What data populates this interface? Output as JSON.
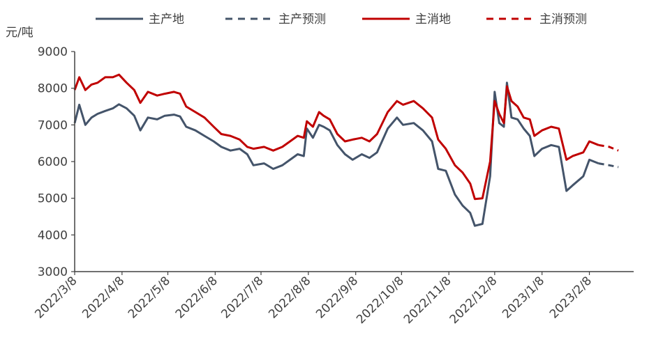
{
  "chart_data": {
    "type": "line",
    "y_unit": "元/吨",
    "ylim": [
      3000,
      9000
    ],
    "y_ticks": [
      "9000",
      "8000",
      "7000",
      "6000",
      "5000",
      "4000",
      "3000"
    ],
    "x_ticks": [
      "2022/3/8",
      "2022/4/8",
      "2022/5/8",
      "2022/6/8",
      "2022/7/8",
      "2022/8/8",
      "2022/9/8",
      "2022/10/8",
      "2022/11/8",
      "2022/12/8",
      "2023/1/8",
      "2023/2/8"
    ],
    "xlim": [
      "2022-03-08",
      "2023-03-09"
    ],
    "legend_position": "top",
    "grid": false,
    "series": [
      {
        "name": "主产地",
        "style": "solid",
        "color": "#44546a",
        "points": [
          [
            "2022-03-08",
            7050
          ],
          [
            "2022-03-11",
            7550
          ],
          [
            "2022-03-15",
            7000
          ],
          [
            "2022-03-19",
            7200
          ],
          [
            "2022-03-23",
            7300
          ],
          [
            "2022-03-28",
            7380
          ],
          [
            "2022-04-02",
            7450
          ],
          [
            "2022-04-06",
            7560
          ],
          [
            "2022-04-11",
            7450
          ],
          [
            "2022-04-16",
            7250
          ],
          [
            "2022-04-20",
            6850
          ],
          [
            "2022-04-25",
            7200
          ],
          [
            "2022-05-01",
            7150
          ],
          [
            "2022-05-06",
            7250
          ],
          [
            "2022-05-12",
            7280
          ],
          [
            "2022-05-16",
            7230
          ],
          [
            "2022-05-20",
            6950
          ],
          [
            "2022-05-26",
            6850
          ],
          [
            "2022-06-01",
            6700
          ],
          [
            "2022-06-07",
            6550
          ],
          [
            "2022-06-12",
            6400
          ],
          [
            "2022-06-18",
            6300
          ],
          [
            "2022-06-24",
            6350
          ],
          [
            "2022-06-29",
            6200
          ],
          [
            "2022-07-03",
            5900
          ],
          [
            "2022-07-10",
            5950
          ],
          [
            "2022-07-16",
            5800
          ],
          [
            "2022-07-22",
            5900
          ],
          [
            "2022-07-27",
            6050
          ],
          [
            "2022-08-01",
            6200
          ],
          [
            "2022-08-05",
            6150
          ],
          [
            "2022-08-07",
            6900
          ],
          [
            "2022-08-11",
            6650
          ],
          [
            "2022-08-15",
            7000
          ],
          [
            "2022-08-18",
            6950
          ],
          [
            "2022-08-22",
            6850
          ],
          [
            "2022-08-27",
            6450
          ],
          [
            "2022-09-01",
            6200
          ],
          [
            "2022-09-06",
            6050
          ],
          [
            "2022-09-12",
            6200
          ],
          [
            "2022-09-17",
            6100
          ],
          [
            "2022-09-22",
            6250
          ],
          [
            "2022-09-29",
            6900
          ],
          [
            "2022-10-05",
            7200
          ],
          [
            "2022-10-09",
            7000
          ],
          [
            "2022-10-16",
            7050
          ],
          [
            "2022-10-22",
            6850
          ],
          [
            "2022-10-28",
            6550
          ],
          [
            "2022-11-01",
            5800
          ],
          [
            "2022-11-06",
            5750
          ],
          [
            "2022-11-12",
            5100
          ],
          [
            "2022-11-17",
            4800
          ],
          [
            "2022-11-22",
            4600
          ],
          [
            "2022-11-25",
            4250
          ],
          [
            "2022-11-30",
            4300
          ],
          [
            "2022-12-05",
            5600
          ],
          [
            "2022-12-08",
            7900
          ],
          [
            "2022-12-11",
            7050
          ],
          [
            "2022-12-14",
            6950
          ],
          [
            "2022-12-16",
            8150
          ],
          [
            "2022-12-19",
            7200
          ],
          [
            "2022-12-23",
            7150
          ],
          [
            "2022-12-27",
            6900
          ],
          [
            "2022-12-31",
            6700
          ],
          [
            "2023-01-03",
            6150
          ],
          [
            "2023-01-08",
            6350
          ],
          [
            "2023-01-14",
            6450
          ],
          [
            "2023-01-19",
            6400
          ],
          [
            "2023-01-24",
            5200
          ],
          [
            "2023-01-28",
            5350
          ],
          [
            "2023-02-04",
            5600
          ],
          [
            "2023-02-08",
            6050
          ],
          [
            "2023-02-14",
            5950
          ]
        ]
      },
      {
        "name": "主产预测",
        "style": "dashed",
        "color": "#44546a",
        "points": [
          [
            "2023-02-14",
            5950
          ],
          [
            "2023-02-21",
            5900
          ],
          [
            "2023-02-27",
            5850
          ]
        ]
      },
      {
        "name": "主消地",
        "style": "solid",
        "color": "#c00000",
        "points": [
          [
            "2022-03-08",
            7950
          ],
          [
            "2022-03-11",
            8300
          ],
          [
            "2022-03-15",
            7950
          ],
          [
            "2022-03-19",
            8100
          ],
          [
            "2022-03-23",
            8150
          ],
          [
            "2022-03-28",
            8300
          ],
          [
            "2022-04-02",
            8300
          ],
          [
            "2022-04-06",
            8370
          ],
          [
            "2022-04-11",
            8150
          ],
          [
            "2022-04-16",
            7950
          ],
          [
            "2022-04-20",
            7600
          ],
          [
            "2022-04-25",
            7900
          ],
          [
            "2022-05-01",
            7800
          ],
          [
            "2022-05-06",
            7850
          ],
          [
            "2022-05-12",
            7900
          ],
          [
            "2022-05-16",
            7850
          ],
          [
            "2022-05-20",
            7500
          ],
          [
            "2022-05-26",
            7350
          ],
          [
            "2022-06-01",
            7200
          ],
          [
            "2022-06-07",
            6950
          ],
          [
            "2022-06-12",
            6750
          ],
          [
            "2022-06-18",
            6700
          ],
          [
            "2022-06-24",
            6600
          ],
          [
            "2022-06-29",
            6400
          ],
          [
            "2022-07-03",
            6350
          ],
          [
            "2022-07-10",
            6400
          ],
          [
            "2022-07-16",
            6300
          ],
          [
            "2022-07-22",
            6400
          ],
          [
            "2022-07-27",
            6550
          ],
          [
            "2022-08-01",
            6700
          ],
          [
            "2022-08-05",
            6650
          ],
          [
            "2022-08-07",
            7100
          ],
          [
            "2022-08-11",
            6950
          ],
          [
            "2022-08-15",
            7350
          ],
          [
            "2022-08-18",
            7250
          ],
          [
            "2022-08-22",
            7150
          ],
          [
            "2022-08-27",
            6750
          ],
          [
            "2022-09-01",
            6550
          ],
          [
            "2022-09-06",
            6600
          ],
          [
            "2022-09-12",
            6650
          ],
          [
            "2022-09-17",
            6550
          ],
          [
            "2022-09-22",
            6750
          ],
          [
            "2022-09-29",
            7350
          ],
          [
            "2022-10-05",
            7650
          ],
          [
            "2022-10-09",
            7550
          ],
          [
            "2022-10-16",
            7650
          ],
          [
            "2022-10-22",
            7450
          ],
          [
            "2022-10-28",
            7200
          ],
          [
            "2022-11-01",
            6600
          ],
          [
            "2022-11-06",
            6350
          ],
          [
            "2022-11-12",
            5900
          ],
          [
            "2022-11-17",
            5700
          ],
          [
            "2022-11-22",
            5400
          ],
          [
            "2022-11-25",
            4980
          ],
          [
            "2022-11-30",
            5000
          ],
          [
            "2022-12-05",
            6000
          ],
          [
            "2022-12-08",
            7650
          ],
          [
            "2022-12-11",
            7300
          ],
          [
            "2022-12-14",
            7050
          ],
          [
            "2022-12-16",
            8050
          ],
          [
            "2022-12-19",
            7650
          ],
          [
            "2022-12-23",
            7500
          ],
          [
            "2022-12-27",
            7200
          ],
          [
            "2022-12-31",
            7150
          ],
          [
            "2023-01-03",
            6700
          ],
          [
            "2023-01-08",
            6850
          ],
          [
            "2023-01-14",
            6950
          ],
          [
            "2023-01-19",
            6900
          ],
          [
            "2023-01-24",
            6050
          ],
          [
            "2023-01-28",
            6150
          ],
          [
            "2023-02-04",
            6250
          ],
          [
            "2023-02-08",
            6550
          ],
          [
            "2023-02-14",
            6450
          ]
        ]
      },
      {
        "name": "主消预测",
        "style": "dashed",
        "color": "#c00000",
        "points": [
          [
            "2023-02-14",
            6450
          ],
          [
            "2023-02-21",
            6400
          ],
          [
            "2023-02-27",
            6300
          ]
        ]
      }
    ]
  }
}
